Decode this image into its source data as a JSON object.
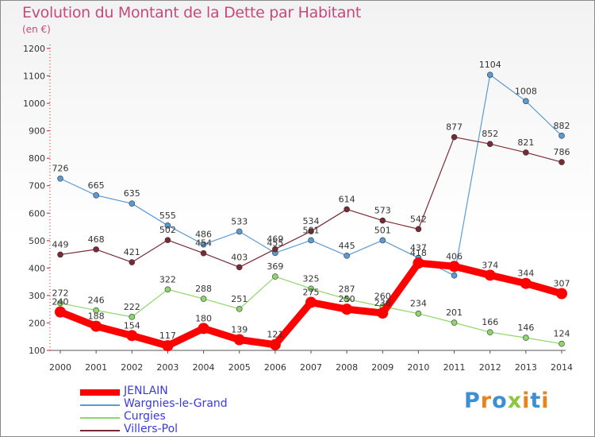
{
  "title": "Evolution du Montant de la Dette par Habitant",
  "subtitle": "(en €)",
  "logo_text": "Proxiti",
  "chart_data": {
    "type": "line",
    "x": [
      2000,
      2001,
      2002,
      2003,
      2004,
      2005,
      2006,
      2007,
      2008,
      2009,
      2010,
      2011,
      2012,
      2013,
      2014
    ],
    "ylim": [
      100,
      1200
    ],
    "yticks": [
      100,
      200,
      300,
      400,
      500,
      600,
      700,
      800,
      900,
      1000,
      1100,
      1200
    ],
    "grid": false,
    "legend_position": "bottom-left",
    "series": [
      {
        "name": "JENLAIN",
        "color": "#ff0000",
        "values": [
          240,
          188,
          154,
          117,
          180,
          139,
          121,
          275,
          250,
          236,
          418,
          406,
          374,
          344,
          307
        ],
        "labels": [
          "240",
          "188",
          "154",
          "117",
          "180",
          "139",
          "121",
          "275",
          "250",
          "236",
          "418",
          "406",
          "374",
          "344",
          "307"
        ]
      },
      {
        "name": "Wargnies-le-Grand",
        "color": "#5b9bd5",
        "values": [
          726,
          665,
          635,
          555,
          486,
          533,
          455,
          501,
          445,
          501,
          437,
          373,
          1104,
          1008,
          882
        ],
        "labels": [
          "726",
          "665",
          "635",
          "555",
          "486",
          "533",
          "455",
          "501",
          "445",
          "501",
          "437",
          "",
          "1104",
          "1008",
          "882"
        ]
      },
      {
        "name": "Curgies",
        "color": "#8fd66a",
        "values": [
          272,
          246,
          222,
          322,
          288,
          251,
          369,
          325,
          287,
          260,
          234,
          201,
          166,
          146,
          124
        ],
        "labels": [
          "272",
          "246",
          "222",
          "322",
          "288",
          "251",
          "369",
          "325",
          "287",
          "260",
          "234",
          "201",
          "166",
          "146",
          "124"
        ]
      },
      {
        "name": "Villers-Pol",
        "color": "#7a2a35",
        "values": [
          449,
          468,
          421,
          502,
          454,
          403,
          469,
          534,
          614,
          573,
          542,
          877,
          852,
          821,
          786
        ],
        "labels": [
          "449",
          "468",
          "421",
          "502",
          "454",
          "403",
          "469",
          "534",
          "614",
          "573",
          "542",
          "877",
          "852",
          "821",
          "786"
        ]
      }
    ]
  }
}
